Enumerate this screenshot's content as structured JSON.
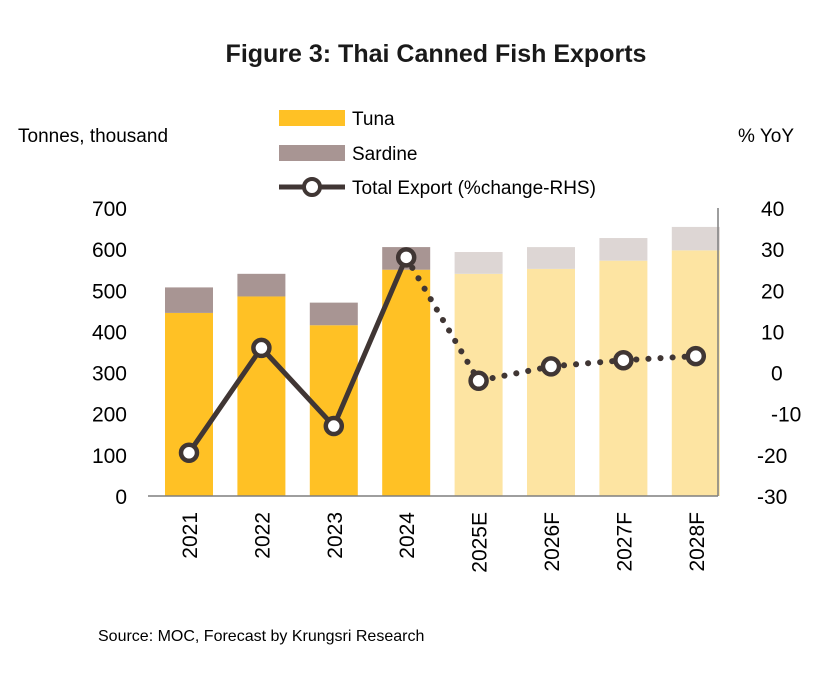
{
  "chart_data": {
    "type": "bar",
    "title": "Figure 3: Thai Canned Fish Exports",
    "ylabel_left": "Tonnes, thousand",
    "ylabel_right": "% YoY",
    "categories": [
      "2021",
      "2022",
      "2023",
      "2024",
      "2025E",
      "2026F",
      "2027F",
      "2028F"
    ],
    "forecast_from_index": 4,
    "ylim_left": [
      0,
      700
    ],
    "ylim_right": [
      -30,
      40
    ],
    "yticks_left": [
      "0",
      "100",
      "200",
      "300",
      "400",
      "500",
      "600",
      "700"
    ],
    "yticks_right": [
      "-30",
      "-20",
      "-10",
      "0",
      "10",
      "20",
      "30",
      "40"
    ],
    "series": [
      {
        "name": "Tuna",
        "type": "stacked-bar",
        "axis": "left",
        "values": [
          445,
          485,
          415,
          550,
          540,
          552,
          572,
          597
        ]
      },
      {
        "name": "Sardine",
        "type": "stacked-bar",
        "axis": "left",
        "values": [
          62,
          55,
          55,
          55,
          53,
          53,
          55,
          57
        ]
      },
      {
        "name": "Total Export (%change-RHS)",
        "type": "line",
        "axis": "right",
        "values": [
          -19.5,
          6,
          -13,
          28,
          -2,
          1.5,
          3,
          4
        ]
      }
    ],
    "legend": [
      "Tuna",
      "Sardine",
      "Total Export (%change-RHS)"
    ],
    "source": "Source: MOC, Forecast by Krungsri Research"
  },
  "colors": {
    "tuna": "#FFC125",
    "tuna_forecast": "#FDE4A2",
    "sardine": "#A89593",
    "sardine_forecast": "#DDD6D4",
    "line": "#403634",
    "marker_fill": "#ffffff"
  }
}
